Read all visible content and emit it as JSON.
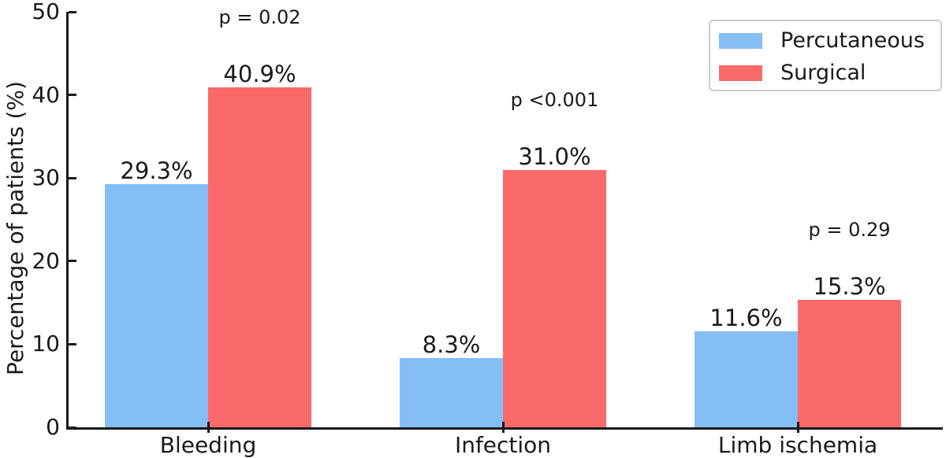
{
  "chart_data": {
    "type": "bar",
    "title": "",
    "xlabel": "",
    "ylabel": "Percentage of patients (%)",
    "ylim": [
      0,
      50
    ],
    "yticks": [
      "0",
      "10",
      "20",
      "30",
      "40",
      "50"
    ],
    "grid": false,
    "legend_position": "upper right",
    "categories": [
      "Bleeding",
      "Infection",
      "Limb ischemia"
    ],
    "series": [
      {
        "name": "Percutaneous",
        "color": "#84BEF5",
        "values": [
          29.3,
          8.3,
          11.6
        ],
        "value_labels": [
          "29.3%",
          "8.3%",
          "11.6%"
        ]
      },
      {
        "name": "Surgical",
        "color": "#FA6A6A",
        "values": [
          40.9,
          31.0,
          15.3
        ],
        "value_labels": [
          "40.9%",
          "31.0%",
          "15.3%"
        ]
      }
    ],
    "p_values": [
      "p = 0.02",
      "p <0.001",
      "p = 0.29"
    ]
  }
}
